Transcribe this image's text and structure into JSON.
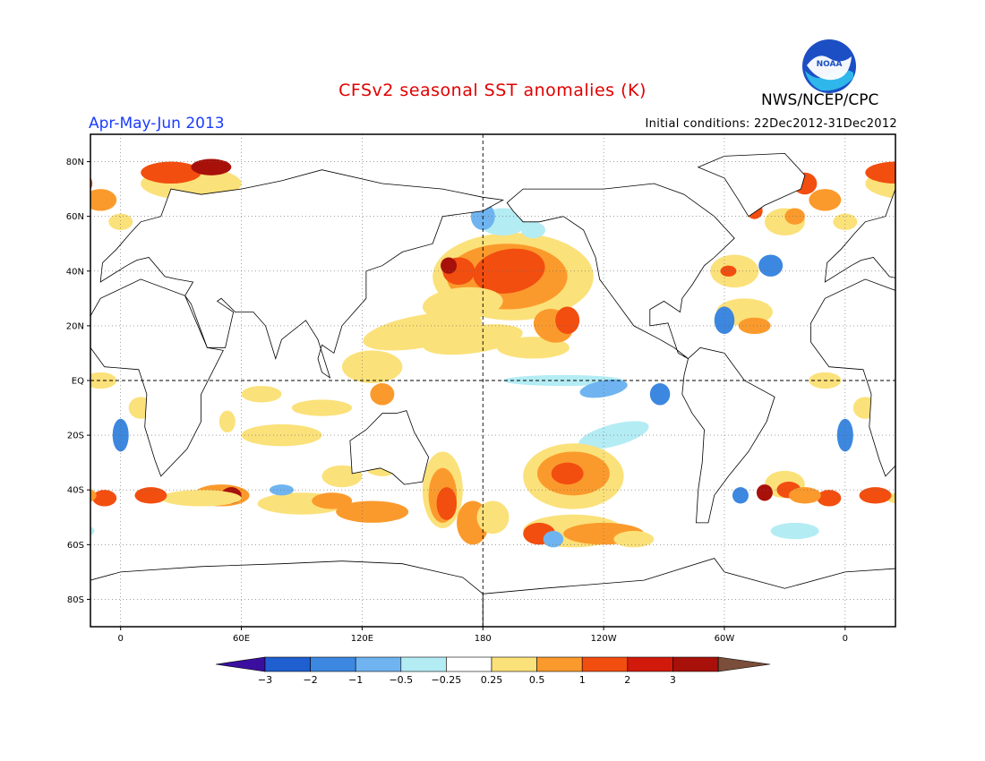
{
  "title": "CFSv2 seasonal SST anomalies (K)",
  "period": "Apr-May-Jun 2013",
  "initial_conditions": "Initial conditions: 22Dec2012-31Dec2012",
  "organization": "NWS/NCEP/CPC",
  "logo_text": "NOAA",
  "lat_ticks": [
    {
      "label": "80N",
      "lat": 80
    },
    {
      "label": "60N",
      "lat": 60
    },
    {
      "label": "40N",
      "lat": 40
    },
    {
      "label": "20N",
      "lat": 20
    },
    {
      "label": "EQ",
      "lat": 0
    },
    {
      "label": "20S",
      "lat": -20
    },
    {
      "label": "40S",
      "lat": -40
    },
    {
      "label": "60S",
      "lat": -60
    },
    {
      "label": "80S",
      "lat": -80
    }
  ],
  "lon_ticks": [
    {
      "label": "0",
      "lon": 0
    },
    {
      "label": "60E",
      "lon": 60
    },
    {
      "label": "120E",
      "lon": 120
    },
    {
      "label": "180",
      "lon": 180
    },
    {
      "label": "120W",
      "lon": 240
    },
    {
      "label": "60W",
      "lon": 300
    },
    {
      "label": "0",
      "lon": 360
    }
  ],
  "colorbar": {
    "labels": [
      "-3",
      "-2",
      "-1",
      "-0.5",
      "-0.25",
      "0.25",
      "0.5",
      "1",
      "2",
      "3"
    ],
    "colors": [
      "#3a0fa0",
      "#1f5fd0",
      "#3c87e0",
      "#6fb4f0",
      "#b4ecf4",
      "#ffffff",
      "#fbe17a",
      "#fb9a2c",
      "#f24e10",
      "#d21a0c",
      "#a8100a",
      "#7a4e3a"
    ]
  },
  "anomaly_colors": {
    "warm_weak": "#fbe17a",
    "warm": "#fb9a2c",
    "warm_strong": "#f24e10",
    "hot": "#d21a0c",
    "very_hot": "#a8100a",
    "cool_weak": "#b4ecf4",
    "cool": "#6fb4f0",
    "cold": "#3c87e0",
    "very_cold": "#1f5fd0"
  }
}
